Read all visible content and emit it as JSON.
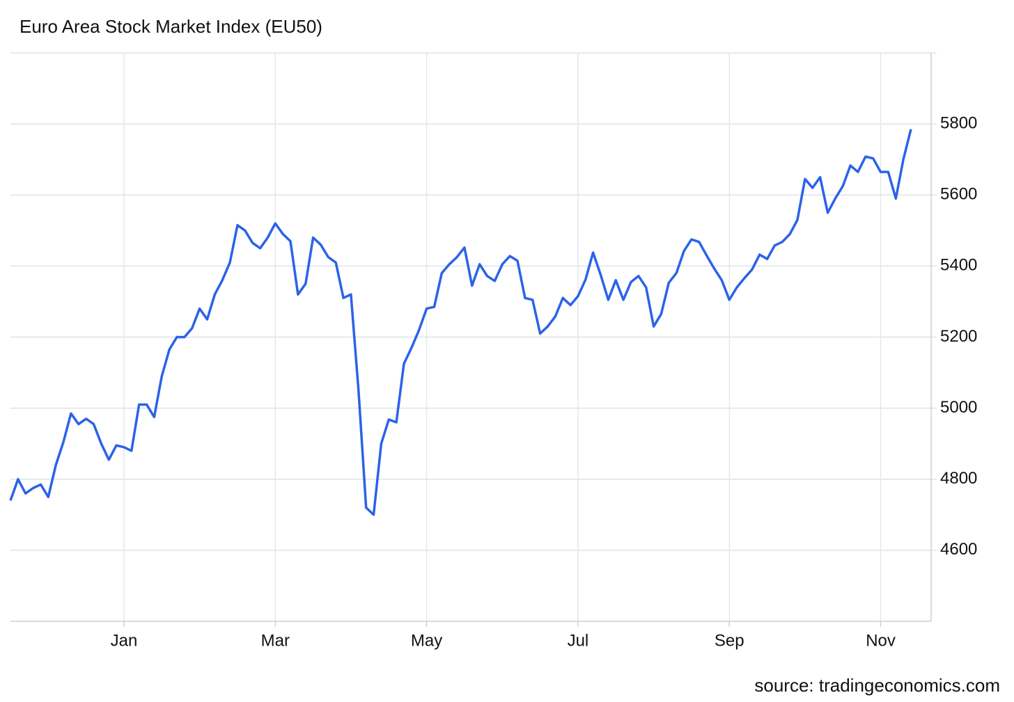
{
  "chart_data": {
    "type": "line",
    "title": "Euro Area Stock Market Index (EU50)",
    "source": "source: tradingeconomics.com",
    "categories": [
      null,
      null,
      null,
      null,
      null,
      null,
      null,
      null,
      null,
      null,
      null,
      null,
      null,
      null,
      null,
      "Jan",
      null,
      null,
      null,
      null,
      null,
      null,
      null,
      null,
      null,
      null,
      null,
      null,
      null,
      null,
      null,
      null,
      null,
      null,
      null,
      "Mar",
      null,
      null,
      null,
      null,
      null,
      null,
      null,
      null,
      null,
      null,
      null,
      null,
      null,
      null,
      null,
      null,
      null,
      null,
      null,
      "May",
      null,
      null,
      null,
      null,
      null,
      null,
      null,
      null,
      null,
      null,
      null,
      null,
      null,
      null,
      null,
      null,
      null,
      null,
      null,
      "Jul",
      null,
      null,
      null,
      null,
      null,
      null,
      null,
      null,
      null,
      null,
      null,
      null,
      null,
      null,
      null,
      null,
      null,
      null,
      null,
      "Sep",
      null,
      null,
      null,
      null,
      null,
      null,
      null,
      null,
      null,
      null,
      null,
      null,
      null,
      null,
      null,
      null,
      null,
      null,
      null,
      "Nov",
      null,
      null,
      null,
      null
    ],
    "series": [
      {
        "name": "EU50",
        "color": "#2b62e8",
        "values": [
          4740,
          4800,
          4760,
          4775,
          4785,
          4750,
          4840,
          4905,
          4985,
          4955,
          4970,
          4955,
          4900,
          4855,
          4895,
          4890,
          4880,
          5010,
          5010,
          4975,
          5090,
          5165,
          5200,
          5200,
          5225,
          5280,
          5250,
          5320,
          5360,
          5410,
          5515,
          5500,
          5465,
          5450,
          5480,
          5520,
          5490,
          5470,
          5320,
          5350,
          5480,
          5460,
          5425,
          5410,
          5310,
          5320,
          5050,
          4720,
          4700,
          4900,
          4968,
          4960,
          5125,
          5170,
          5220,
          5280,
          5285,
          5380,
          5405,
          5425,
          5452,
          5345,
          5405,
          5372,
          5358,
          5405,
          5428,
          5415,
          5310,
          5305,
          5210,
          5230,
          5258,
          5310,
          5290,
          5315,
          5362,
          5438,
          5375,
          5305,
          5360,
          5305,
          5355,
          5372,
          5340,
          5230,
          5265,
          5353,
          5380,
          5442,
          5475,
          5468,
          5430,
          5393,
          5360,
          5305,
          5340,
          5366,
          5390,
          5432,
          5420,
          5458,
          5468,
          5490,
          5530,
          5645,
          5620,
          5650,
          5550,
          5590,
          5625,
          5683,
          5665,
          5708,
          5703,
          5665,
          5665,
          5590,
          5700,
          5785
        ]
      }
    ],
    "ylim": [
      4400,
      6000
    ],
    "yticks": [
      4600,
      4800,
      5000,
      5200,
      5400,
      5600,
      5800
    ],
    "grid": true
  }
}
